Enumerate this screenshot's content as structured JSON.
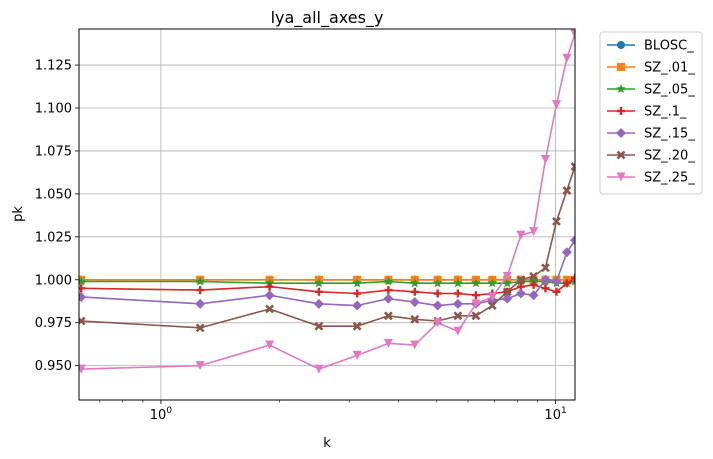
{
  "chart_data": {
    "type": "line",
    "title": "lya_all_axes_y",
    "xlabel": "k",
    "ylabel": "pk",
    "xscale": "log",
    "xlim": [
      0.62,
      11.2
    ],
    "ylim": [
      0.93,
      1.146
    ],
    "grid": true,
    "legend_position": "outside-top-right",
    "x_tick_labels": [
      {
        "value": 1,
        "base": "10",
        "exp": "0"
      },
      {
        "value": 10,
        "base": "10",
        "exp": "1"
      }
    ],
    "y_ticks": [
      0.95,
      0.975,
      1.0,
      1.025,
      1.05,
      1.075,
      1.1,
      1.125
    ],
    "y_tick_labels": [
      "0.950",
      "0.975",
      "1.000",
      "1.025",
      "1.050",
      "1.075",
      "1.100",
      "1.125"
    ],
    "x": [
      0.628,
      1.257,
      1.885,
      2.513,
      3.142,
      3.77,
      4.398,
      5.027,
      5.655,
      6.283,
      6.912,
      7.54,
      8.168,
      8.796,
      9.425,
      10.053,
      10.681,
      11.2
    ],
    "series": [
      {
        "name": "BLOSC_",
        "color": "#1f77b4",
        "marker": "circle",
        "values": [
          1.0,
          1.0,
          1.0,
          1.0,
          1.0,
          1.0,
          1.0,
          1.0,
          1.0,
          1.0,
          1.0,
          1.0,
          1.0,
          1.0,
          1.0,
          1.0,
          1.0,
          1.0
        ]
      },
      {
        "name": "SZ_.01_",
        "color": "#ff7f0e",
        "marker": "square",
        "values": [
          1.0,
          1.0,
          1.0,
          1.0,
          1.0,
          1.0,
          1.0,
          1.0,
          1.0,
          1.0,
          1.0,
          1.0,
          1.0,
          1.0,
          1.0,
          1.0,
          1.0,
          1.0
        ]
      },
      {
        "name": "SZ_.05_",
        "color": "#2ca02c",
        "marker": "star",
        "values": [
          0.999,
          0.999,
          0.998,
          0.998,
          0.998,
          0.999,
          0.998,
          0.998,
          0.998,
          0.998,
          0.998,
          0.998,
          0.999,
          0.999,
          0.999,
          0.998,
          0.998,
          0.999
        ]
      },
      {
        "name": "SZ_.1_",
        "color": "#d62728",
        "marker": "plus",
        "values": [
          0.995,
          0.994,
          0.996,
          0.993,
          0.992,
          0.994,
          0.993,
          0.992,
          0.992,
          0.991,
          0.992,
          0.993,
          0.996,
          0.997,
          0.995,
          0.993,
          0.998,
          1.001
        ]
      },
      {
        "name": "SZ_.15_",
        "color": "#9467bd",
        "marker": "diamond",
        "values": [
          0.99,
          0.986,
          0.991,
          0.986,
          0.985,
          0.989,
          0.987,
          0.985,
          0.986,
          0.986,
          0.988,
          0.989,
          0.992,
          0.991,
          1.0,
          0.999,
          1.016,
          1.023
        ]
      },
      {
        "name": "SZ_.20_",
        "color": "#8c564b",
        "marker": "x",
        "values": [
          0.976,
          0.972,
          0.983,
          0.973,
          0.973,
          0.979,
          0.977,
          0.976,
          0.979,
          0.979,
          0.985,
          0.993,
          1.0,
          1.002,
          1.007,
          1.034,
          1.052,
          1.066
        ]
      },
      {
        "name": "SZ_.25_",
        "color": "#e377c2",
        "marker": "triangle-down",
        "values": [
          0.948,
          0.95,
          0.962,
          0.948,
          0.956,
          0.963,
          0.962,
          0.975,
          0.97,
          0.986,
          0.99,
          1.002,
          1.026,
          1.028,
          1.07,
          1.102,
          1.129,
          1.143
        ]
      }
    ]
  }
}
